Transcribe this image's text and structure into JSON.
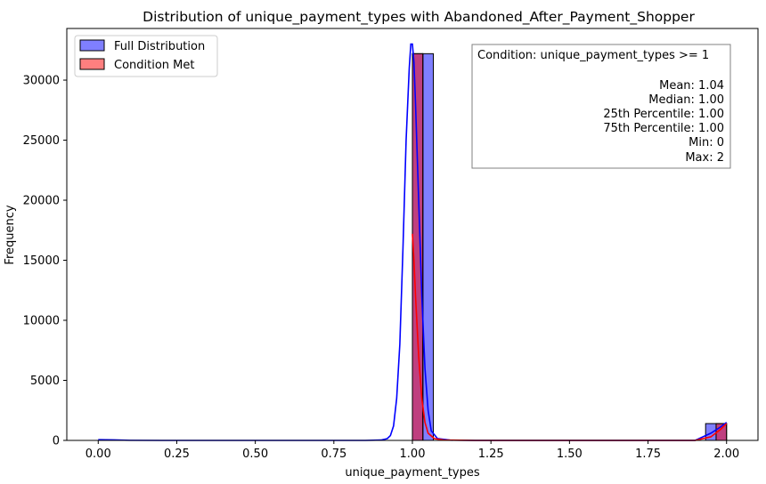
{
  "chart_data": {
    "type": "bar",
    "title": "Distribution of unique_payment_types with Abandoned_After_Payment_Shopper",
    "xlabel": "unique_payment_types",
    "ylabel": "Frequency",
    "xlim": [
      -0.1,
      2.1
    ],
    "ylim": [
      0,
      34300
    ],
    "x_ticks": [
      0.0,
      0.25,
      0.5,
      0.75,
      1.0,
      1.25,
      1.5,
      1.75,
      2.0
    ],
    "x_tick_labels": [
      "0.00",
      "0.25",
      "0.50",
      "0.75",
      "1.00",
      "1.25",
      "1.50",
      "1.75",
      "2.00"
    ],
    "y_ticks": [
      0,
      5000,
      10000,
      15000,
      20000,
      25000,
      30000
    ],
    "y_tick_labels": [
      "0",
      "5000",
      "10000",
      "15000",
      "20000",
      "25000",
      "30000"
    ],
    "grid": false,
    "legend_position": "top-left",
    "series": [
      {
        "name": "Full Distribution",
        "color": "#0000ff",
        "bins": [
          {
            "x0": 1.0,
            "x1": 1.0333,
            "value": 32200
          },
          {
            "x0": 1.0333,
            "x1": 1.0667,
            "value": 32200
          },
          {
            "x0": 1.9333,
            "x1": 1.9667,
            "value": 1400
          },
          {
            "x0": 1.9667,
            "x1": 2.0,
            "value": 1400
          }
        ],
        "kde": [
          [
            0.0,
            60
          ],
          [
            0.05,
            40
          ],
          [
            0.1,
            10
          ],
          [
            0.2,
            0
          ],
          [
            0.85,
            0
          ],
          [
            0.9,
            30
          ],
          [
            0.92,
            150
          ],
          [
            0.93,
            400
          ],
          [
            0.94,
            1200
          ],
          [
            0.95,
            3500
          ],
          [
            0.96,
            8000
          ],
          [
            0.97,
            16000
          ],
          [
            0.98,
            25000
          ],
          [
            0.99,
            31000
          ],
          [
            0.995,
            33000
          ],
          [
            1.0,
            33000
          ],
          [
            1.005,
            31500
          ],
          [
            1.01,
            28000
          ],
          [
            1.02,
            20000
          ],
          [
            1.03,
            12000
          ],
          [
            1.04,
            6000
          ],
          [
            1.05,
            2500
          ],
          [
            1.06,
            800
          ],
          [
            1.08,
            150
          ],
          [
            1.12,
            20
          ],
          [
            1.2,
            0
          ],
          [
            1.9,
            0
          ],
          [
            1.95,
            600
          ],
          [
            1.98,
            1100
          ],
          [
            2.0,
            1500
          ]
        ]
      },
      {
        "name": "Condition Met",
        "color": "#ff0000",
        "bins": [
          {
            "x0": 1.0,
            "x1": 1.0333,
            "value": 32200
          },
          {
            "x0": 1.9667,
            "x1": 2.0,
            "value": 1400
          }
        ],
        "kde": [
          [
            1.0,
            17200
          ],
          [
            1.005,
            15000
          ],
          [
            1.01,
            12000
          ],
          [
            1.02,
            7000
          ],
          [
            1.03,
            3500
          ],
          [
            1.04,
            1500
          ],
          [
            1.05,
            600
          ],
          [
            1.07,
            150
          ],
          [
            1.1,
            30
          ],
          [
            1.2,
            0
          ],
          [
            1.9,
            0
          ],
          [
            1.95,
            300
          ],
          [
            1.98,
            900
          ],
          [
            2.0,
            1400
          ]
        ]
      }
    ],
    "stats_box": {
      "heading": "Condition: unique_payment_types >= 1",
      "lines": [
        "Mean: 1.04",
        "Median: 1.00",
        "25th Percentile: 1.00",
        "75th Percentile: 1.00",
        "Min: 0",
        "Max: 2"
      ]
    }
  }
}
